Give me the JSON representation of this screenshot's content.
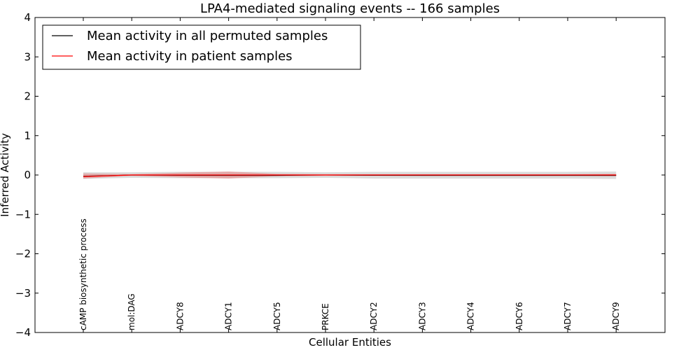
{
  "chart_data": {
    "type": "line",
    "title": "LPA4-mediated signaling events -- 166 samples",
    "xlabel": "Cellular Entities",
    "ylabel": "Inferred Activity",
    "ylim": [
      -4,
      4
    ],
    "yticks": [
      4,
      3,
      2,
      1,
      0,
      -1,
      -2,
      -3,
      -4
    ],
    "ytick_labels": [
      "4",
      "3",
      "2",
      "1",
      "0",
      "−1",
      "−2",
      "−3",
      "−4"
    ],
    "grid": false,
    "legend_position": "top-left",
    "categories": [
      "cAMP biosynthetic process",
      "mol:DAG",
      "ADCY8",
      "ADCY1",
      "ADCY5",
      "PRKCE",
      "ADCY2",
      "ADCY3",
      "ADCY4",
      "ADCY6",
      "ADCY7",
      "ADCY9"
    ],
    "series": [
      {
        "name": "Mean activity in all permuted samples",
        "color": "#000000",
        "values": [
          -0.03,
          0.0,
          -0.01,
          -0.01,
          -0.01,
          0.0,
          -0.01,
          -0.01,
          -0.01,
          -0.01,
          -0.01,
          -0.01
        ],
        "band_lower": [
          -0.1,
          -0.07,
          -0.08,
          -0.08,
          -0.08,
          -0.07,
          -0.09,
          -0.09,
          -0.09,
          -0.09,
          -0.09,
          -0.1
        ],
        "band_upper": [
          0.07,
          0.07,
          0.08,
          0.08,
          0.08,
          0.07,
          0.08,
          0.08,
          0.08,
          0.08,
          0.08,
          0.09
        ],
        "band_color": "#b0b0b0"
      },
      {
        "name": "Mean activity in patient samples",
        "color": "#ff0000",
        "values": [
          -0.04,
          0.0,
          0.0,
          0.0,
          0.0,
          0.0,
          0.0,
          0.0,
          0.0,
          0.0,
          0.0,
          0.0
        ],
        "band_lower": [
          -0.09,
          -0.02,
          -0.06,
          -0.09,
          -0.03,
          -0.02,
          -0.02,
          -0.02,
          -0.02,
          -0.02,
          -0.02,
          -0.03
        ],
        "band_upper": [
          0.04,
          0.02,
          0.06,
          0.09,
          0.03,
          0.02,
          0.02,
          0.02,
          0.02,
          0.02,
          0.02,
          0.03
        ],
        "band_color": "#e88080"
      }
    ]
  }
}
